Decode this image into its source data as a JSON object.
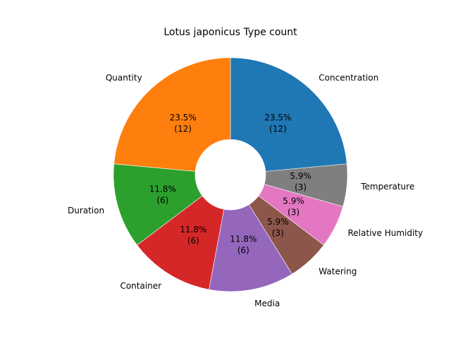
{
  "chart_data": {
    "type": "pie",
    "title": "Lotus japonicus Type count",
    "donut": true,
    "start_angle_deg": 90,
    "direction": "clockwise",
    "slices": [
      {
        "label": "Concentration",
        "value": 12,
        "pct_text": "23.5%",
        "count_text": "(12)",
        "color": "#1f77b4"
      },
      {
        "label": "Temperature",
        "value": 3,
        "pct_text": "5.9%",
        "count_text": "(3)",
        "color": "#7f7f7f"
      },
      {
        "label": "Relative Humidity",
        "value": 3,
        "pct_text": "5.9%",
        "count_text": "(3)",
        "color": "#e377c2"
      },
      {
        "label": "Watering",
        "value": 3,
        "pct_text": "5.9%",
        "count_text": "(3)",
        "color": "#8c564b"
      },
      {
        "label": "Media",
        "value": 6,
        "pct_text": "11.8%",
        "count_text": "(6)",
        "color": "#9467bd"
      },
      {
        "label": "Container",
        "value": 6,
        "pct_text": "11.8%",
        "count_text": "(6)",
        "color": "#d62728"
      },
      {
        "label": "Duration",
        "value": 6,
        "pct_text": "11.8%",
        "count_text": "(6)",
        "color": "#2ca02c"
      },
      {
        "label": "Quantity",
        "value": 12,
        "pct_text": "23.5%",
        "count_text": "(12)",
        "color": "#ff7f0e"
      }
    ]
  }
}
